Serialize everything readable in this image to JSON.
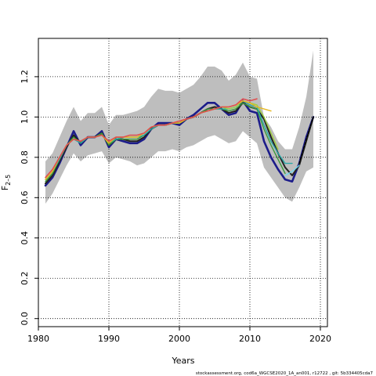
{
  "chart_data": {
    "type": "line",
    "xlabel": "Years",
    "ylabel_main": "F",
    "ylabel_sub": "2–5",
    "footer": "stockassessment.org, cod6a_WGCSE2020_1A_an001, r12722 , git: 5b334405cda7",
    "xlim": [
      1980,
      2021
    ],
    "ylim": [
      -0.04,
      1.39
    ],
    "x_ticks": [
      1980,
      1990,
      2000,
      2010,
      2020
    ],
    "y_ticks": [
      0.0,
      0.2,
      0.4,
      0.6,
      0.8,
      1.0,
      1.2
    ],
    "grid": true,
    "confidence_band": {
      "x": [
        1981,
        1982,
        1983,
        1984,
        1985,
        1986,
        1987,
        1988,
        1989,
        1990,
        1991,
        1992,
        1993,
        1994,
        1995,
        1996,
        1997,
        1998,
        1999,
        2000,
        2001,
        2002,
        2003,
        2004,
        2005,
        2006,
        2007,
        2008,
        2009,
        2010,
        2011,
        2012,
        2013,
        2014,
        2015,
        2016,
        2017,
        2018,
        2019
      ],
      "lower": [
        0.57,
        0.62,
        0.69,
        0.76,
        0.82,
        0.78,
        0.81,
        0.82,
        0.83,
        0.77,
        0.8,
        0.79,
        0.78,
        0.76,
        0.77,
        0.8,
        0.83,
        0.83,
        0.84,
        0.83,
        0.85,
        0.86,
        0.88,
        0.9,
        0.91,
        0.89,
        0.87,
        0.88,
        0.93,
        0.9,
        0.87,
        0.75,
        0.7,
        0.65,
        0.6,
        0.58,
        0.65,
        0.73,
        0.75
      ],
      "upper": [
        0.78,
        0.82,
        0.9,
        0.98,
        1.05,
        0.98,
        1.02,
        1.02,
        1.05,
        0.96,
        1.01,
        1.01,
        1.02,
        1.03,
        1.05,
        1.1,
        1.14,
        1.13,
        1.13,
        1.12,
        1.14,
        1.16,
        1.2,
        1.25,
        1.25,
        1.23,
        1.18,
        1.21,
        1.27,
        1.2,
        1.19,
        1.0,
        0.95,
        0.88,
        0.84,
        0.84,
        0.95,
        1.1,
        1.33
      ]
    },
    "series": [
      {
        "color": "#1c1c8a",
        "width": 2.6,
        "x": [
          1981,
          1982,
          1983,
          1984,
          1985,
          1986,
          1987,
          1988,
          1989,
          1990,
          1991,
          1992,
          1993,
          1994,
          1995,
          1996,
          1997,
          1998,
          1999,
          2000,
          2001,
          2002,
          2003,
          2004,
          2005,
          2006,
          2007,
          2008,
          2009,
          2010,
          2011,
          2012,
          2013,
          2014,
          2015,
          2016,
          2017,
          2018,
          2019
        ],
        "y": [
          0.66,
          0.7,
          0.77,
          0.85,
          0.93,
          0.86,
          0.9,
          0.9,
          0.93,
          0.85,
          0.89,
          0.88,
          0.87,
          0.87,
          0.89,
          0.94,
          0.97,
          0.97,
          0.97,
          0.96,
          0.99,
          1.01,
          1.04,
          1.07,
          1.07,
          1.04,
          1.01,
          1.02,
          1.08,
          1.03,
          1.02,
          0.88,
          0.8,
          0.74,
          0.69,
          0.68,
          0.77,
          0.9,
          1.0
        ]
      },
      {
        "color": "#222222",
        "width": 2.0,
        "x": [
          1981,
          1982,
          1983,
          1984,
          1985,
          1986,
          1987,
          1988,
          1989,
          1990,
          1991,
          1992,
          1993,
          1994,
          1995,
          1996,
          1997,
          1998,
          1999,
          2000,
          2001,
          2002,
          2003,
          2004,
          2005,
          2006,
          2007,
          2008,
          2009,
          2010,
          2011,
          2012,
          2013,
          2014,
          2015,
          2016,
          2017,
          2018,
          2019
        ],
        "y": [
          0.67,
          0.71,
          0.78,
          0.85,
          0.91,
          0.87,
          0.9,
          0.9,
          0.92,
          0.86,
          0.89,
          0.89,
          0.88,
          0.88,
          0.9,
          0.94,
          0.96,
          0.96,
          0.97,
          0.97,
          0.99,
          1.0,
          1.02,
          1.04,
          1.05,
          1.04,
          1.02,
          1.03,
          1.07,
          1.05,
          1.04,
          0.99,
          0.9,
          0.82,
          0.75,
          0.71,
          0.76,
          0.88,
          1.0
        ]
      },
      {
        "color": "#3c9a3c",
        "width": 1.4,
        "x": [
          1981,
          1982,
          1983,
          1984,
          1985,
          1986,
          1987,
          1988,
          1989,
          1990,
          1991,
          1992,
          1993,
          1994,
          1995,
          1996,
          1997,
          1998,
          1999,
          2000,
          2001,
          2002,
          2003,
          2004,
          2005,
          2006,
          2007,
          2008,
          2009,
          2010,
          2011,
          2012,
          2013,
          2014,
          2015
        ],
        "y": [
          0.68,
          0.72,
          0.79,
          0.86,
          0.9,
          0.87,
          0.9,
          0.9,
          0.92,
          0.86,
          0.89,
          0.89,
          0.89,
          0.89,
          0.91,
          0.94,
          0.96,
          0.96,
          0.97,
          0.97,
          0.99,
          1.0,
          1.02,
          1.04,
          1.04,
          1.04,
          1.03,
          1.04,
          1.07,
          1.05,
          1.04,
          0.94,
          0.86,
          0.79,
          0.72
        ]
      },
      {
        "color": "#2ba8a8",
        "width": 1.4,
        "x": [
          1981,
          1982,
          1983,
          1984,
          1985,
          1986,
          1987,
          1988,
          1989,
          1990,
          1991,
          1992,
          1993,
          1994,
          1995,
          1996,
          1997,
          1998,
          1999,
          2000,
          2001,
          2002,
          2003,
          2004,
          2005,
          2006,
          2007,
          2008,
          2009,
          2010,
          2011,
          2012,
          2013,
          2014,
          2015,
          2016
        ],
        "y": [
          0.69,
          0.73,
          0.79,
          0.86,
          0.89,
          0.87,
          0.9,
          0.9,
          0.91,
          0.87,
          0.89,
          0.9,
          0.9,
          0.9,
          0.91,
          0.94,
          0.96,
          0.96,
          0.97,
          0.97,
          0.99,
          1.0,
          1.02,
          1.03,
          1.04,
          1.04,
          1.04,
          1.05,
          1.08,
          1.06,
          1.05,
          0.96,
          0.88,
          0.82,
          0.77,
          0.77
        ]
      },
      {
        "color": "#a0d040",
        "width": 1.4,
        "x": [
          1981,
          1982,
          1983,
          1984,
          1985,
          1986,
          1987,
          1988,
          1989,
          1990,
          1991,
          1992,
          1993,
          1994,
          1995,
          1996,
          1997,
          1998,
          1999,
          2000,
          2001,
          2002,
          2003,
          2004,
          2005,
          2006,
          2007,
          2008,
          2009,
          2010,
          2011,
          2012,
          2013,
          2014
        ],
        "y": [
          0.69,
          0.73,
          0.8,
          0.86,
          0.89,
          0.88,
          0.9,
          0.9,
          0.91,
          0.87,
          0.9,
          0.9,
          0.9,
          0.9,
          0.92,
          0.95,
          0.96,
          0.96,
          0.97,
          0.97,
          0.99,
          1.0,
          1.02,
          1.03,
          1.04,
          1.05,
          1.04,
          1.05,
          1.08,
          1.07,
          1.06,
          1.0,
          0.92,
          0.84
        ]
      },
      {
        "color": "#e6b822",
        "width": 1.4,
        "x": [
          1981,
          1982,
          1983,
          1984,
          1985,
          1986,
          1987,
          1988,
          1989,
          1990,
          1991,
          1992,
          1993,
          1994,
          1995,
          1996,
          1997,
          1998,
          1999,
          2000,
          2001,
          2002,
          2003,
          2004,
          2005,
          2006,
          2007,
          2008,
          2009,
          2010,
          2011,
          2012,
          2013
        ],
        "y": [
          0.69,
          0.73,
          0.8,
          0.86,
          0.89,
          0.88,
          0.9,
          0.9,
          0.91,
          0.87,
          0.9,
          0.9,
          0.9,
          0.9,
          0.92,
          0.95,
          0.96,
          0.96,
          0.97,
          0.97,
          0.99,
          1.0,
          1.02,
          1.03,
          1.04,
          1.05,
          1.05,
          1.06,
          1.08,
          1.07,
          1.05,
          1.04,
          1.03
        ]
      },
      {
        "color": "#e05050",
        "width": 1.6,
        "x": [
          1981,
          1982,
          1983,
          1984,
          1985,
          1986,
          1987,
          1988,
          1989,
          1990,
          1991,
          1992,
          1993,
          1994,
          1995,
          1996,
          1997,
          1998,
          1999,
          2000,
          2001,
          2002,
          2003,
          2004,
          2005,
          2006,
          2007,
          2008,
          2009,
          2010,
          2011
        ],
        "y": [
          0.7,
          0.74,
          0.8,
          0.86,
          0.89,
          0.88,
          0.9,
          0.9,
          0.91,
          0.88,
          0.9,
          0.9,
          0.91,
          0.91,
          0.92,
          0.95,
          0.96,
          0.96,
          0.97,
          0.98,
          0.99,
          1.0,
          1.02,
          1.03,
          1.04,
          1.05,
          1.05,
          1.06,
          1.09,
          1.08,
          1.09
        ]
      },
      {
        "color": "#70d8f0",
        "width": 1.4,
        "x": [
          2015,
          2016,
          2017
        ],
        "y": [
          0.71,
          0.73,
          0.76
        ]
      },
      {
        "color": "#000000",
        "width": 1.4,
        "dashed": true,
        "x": [
          2017,
          2018,
          2019
        ],
        "y": [
          0.77,
          0.89,
          1.0
        ]
      }
    ]
  }
}
